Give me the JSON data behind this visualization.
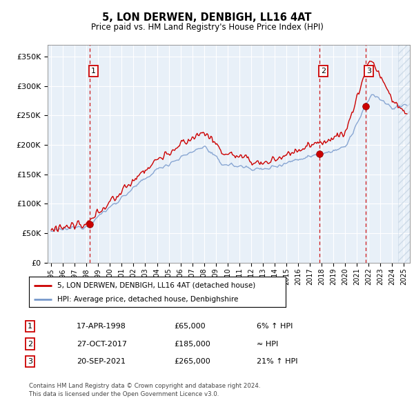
{
  "title1": "5, LON DERWEN, DENBIGH, LL16 4AT",
  "title2": "Price paid vs. HM Land Registry's House Price Index (HPI)",
  "legend_line1": "5, LON DERWEN, DENBIGH, LL16 4AT (detached house)",
  "legend_line2": "HPI: Average price, detached house, Denbighshire",
  "footer1": "Contains HM Land Registry data © Crown copyright and database right 2024.",
  "footer2": "This data is licensed under the Open Government Licence v3.0.",
  "sales": [
    {
      "num": 1,
      "date": "17-APR-1998",
      "price": 65000,
      "note": "6% ↑ HPI",
      "year": 1998.29
    },
    {
      "num": 2,
      "date": "27-OCT-2017",
      "price": 185000,
      "note": "≈ HPI",
      "year": 2017.82
    },
    {
      "num": 3,
      "date": "20-SEP-2021",
      "price": 265000,
      "note": "21% ↑ HPI",
      "year": 2021.72
    }
  ],
  "ylim": [
    0,
    370000
  ],
  "yticks": [
    0,
    50000,
    100000,
    150000,
    200000,
    250000,
    300000,
    350000
  ],
  "plot_bg": "#e8f0f8",
  "hpi_color": "#7799cc",
  "sale_color": "#cc0000",
  "vline_color": "#cc0000",
  "box_color": "#cc0000",
  "grid_color": "#ffffff",
  "xlim_start": 1994.7,
  "xlim_end": 2025.5
}
